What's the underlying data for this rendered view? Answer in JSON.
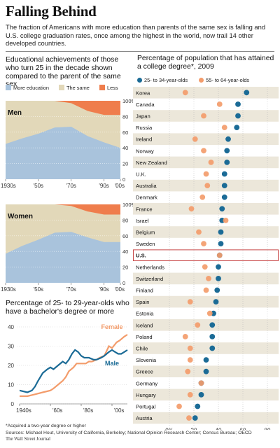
{
  "page": {
    "title": "Falling Behind",
    "intro": "The fraction of Americans with more education than parents of the same sex is falling and U.S. college graduation rates, once among the highest in the world, now trail 14 other developed countries.",
    "footnote": "*Acquired a two-year degree or higher",
    "sources": "Sources: Michael Hout, University of California, Berkeley; National Opinion Research Center; Census Bureau; OECD",
    "credit": "The Wall Street Journal"
  },
  "colors": {
    "more": "#a9c3dc",
    "same": "#e2d8b9",
    "less": "#ef7d4c",
    "dark_blue": "#1b6b96",
    "orange": "#f39c6b",
    "stripe": "#ece7da",
    "highlight": "#c94b4b"
  },
  "chart_data": [
    {
      "type": "area",
      "title": "Educational achievements of those who turn 25 in the decade shown compared to the parent of the same sex",
      "legend": [
        "More education",
        "The same",
        "Less"
      ],
      "panel_label": "Men",
      "x": [
        1930,
        1940,
        1950,
        1960,
        1970,
        1980,
        1990,
        2000
      ],
      "x_ticks": [
        "1930s",
        "'50s",
        "'70s",
        "'90s",
        "'00s"
      ],
      "y_ticks": [
        "100%",
        "80",
        "60",
        "40",
        "20",
        "0"
      ],
      "ylim": [
        0,
        100
      ],
      "series": [
        {
          "name": "More education",
          "values": [
            45,
            52,
            58,
            66,
            67,
            55,
            47,
            40
          ]
        },
        {
          "name": "The same",
          "values": [
            55,
            48,
            42,
            34,
            30,
            32,
            35,
            42
          ]
        },
        {
          "name": "Less",
          "values": [
            0,
            0,
            0,
            0,
            3,
            13,
            18,
            18
          ]
        }
      ]
    },
    {
      "type": "area",
      "panel_label": "Women",
      "x": [
        1930,
        1940,
        1950,
        1960,
        1970,
        1980,
        1990,
        2000
      ],
      "x_ticks": [
        "1930s",
        "'50s",
        "'70s",
        "'90s",
        "'00s"
      ],
      "y_ticks": [
        "100%",
        "80",
        "60",
        "40",
        "20",
        "0"
      ],
      "ylim": [
        0,
        100
      ],
      "series": [
        {
          "name": "More education",
          "values": [
            37,
            47,
            55,
            64,
            65,
            58,
            52,
            52
          ]
        },
        {
          "name": "The same",
          "values": [
            63,
            53,
            45,
            36,
            33,
            33,
            35,
            35
          ]
        },
        {
          "name": "Less",
          "values": [
            0,
            0,
            0,
            0,
            2,
            9,
            13,
            13
          ]
        }
      ]
    },
    {
      "type": "line",
      "title": "Percentage of 25- to 29-year-olds who have a bachelor's degree or more",
      "x_ticks": [
        "1940s",
        "'60s",
        "'80s",
        "'00s"
      ],
      "y_ticks": [
        "40",
        "30",
        "20",
        "10",
        "0"
      ],
      "ylim": [
        0,
        40
      ],
      "xlim": [
        1940,
        2010
      ],
      "series": [
        {
          "name": "Female",
          "points": [
            [
              1940,
              4
            ],
            [
              1945,
              4
            ],
            [
              1950,
              5
            ],
            [
              1955,
              6
            ],
            [
              1960,
              7
            ],
            [
              1962,
              8
            ],
            [
              1965,
              10
            ],
            [
              1968,
              12
            ],
            [
              1970,
              14
            ],
            [
              1972,
              17
            ],
            [
              1975,
              19
            ],
            [
              1977,
              21
            ],
            [
              1980,
              21
            ],
            [
              1983,
              21
            ],
            [
              1985,
              22
            ],
            [
              1987,
              22
            ],
            [
              1990,
              23
            ],
            [
              1992,
              24
            ],
            [
              1995,
              25
            ],
            [
              1998,
              30
            ],
            [
              2000,
              29
            ],
            [
              2003,
              32
            ],
            [
              2005,
              33
            ],
            [
              2008,
              35
            ],
            [
              2010,
              36
            ]
          ]
        },
        {
          "name": "Male",
          "points": [
            [
              1940,
              7
            ],
            [
              1945,
              6
            ],
            [
              1948,
              7
            ],
            [
              1950,
              9
            ],
            [
              1952,
              12
            ],
            [
              1955,
              16
            ],
            [
              1958,
              18
            ],
            [
              1960,
              19
            ],
            [
              1962,
              18
            ],
            [
              1965,
              20
            ],
            [
              1968,
              22
            ],
            [
              1970,
              21
            ],
            [
              1972,
              23
            ],
            [
              1974,
              26
            ],
            [
              1976,
              28
            ],
            [
              1978,
              27
            ],
            [
              1980,
              25
            ],
            [
              1982,
              24
            ],
            [
              1985,
              24
            ],
            [
              1988,
              23
            ],
            [
              1990,
              23
            ],
            [
              1993,
              24
            ],
            [
              1995,
              25
            ],
            [
              1998,
              27
            ],
            [
              2000,
              28
            ],
            [
              2002,
              27
            ],
            [
              2004,
              26
            ],
            [
              2006,
              26
            ],
            [
              2008,
              27
            ],
            [
              2010,
              28
            ]
          ]
        }
      ]
    },
    {
      "type": "scatter",
      "title": "Percentage of population that has attained a college degree*, 2009",
      "legend": [
        "25- to 34-year-olds",
        "55- to 64-year-olds"
      ],
      "x_ticks": [
        "0%",
        "20",
        "40",
        "60",
        "80"
      ],
      "xlim": [
        0,
        80
      ],
      "highlight": "U.S.",
      "countries": [
        {
          "name": "Korea",
          "young": 63,
          "old": 13
        },
        {
          "name": "Canada",
          "young": 56,
          "old": 41
        },
        {
          "name": "Japan",
          "young": 56,
          "old": 28
        },
        {
          "name": "Russia",
          "young": 55,
          "old": 45
        },
        {
          "name": "Ireland",
          "young": 48,
          "old": 21
        },
        {
          "name": "Norway",
          "young": 47,
          "old": 28
        },
        {
          "name": "New Zealand",
          "young": 47,
          "old": 34
        },
        {
          "name": "U.K.",
          "young": 45,
          "old": 30
        },
        {
          "name": "Australia",
          "young": 45,
          "old": 31
        },
        {
          "name": "Denmark",
          "young": 45,
          "old": 27
        },
        {
          "name": "France",
          "young": 43,
          "old": 18
        },
        {
          "name": "Israel",
          "young": 43,
          "old": 46
        },
        {
          "name": "Belgium",
          "young": 42,
          "old": 24
        },
        {
          "name": "Sweden",
          "young": 42,
          "old": 28
        },
        {
          "name": "U.S.",
          "young": 41,
          "old": 41
        },
        {
          "name": "Netherlands",
          "young": 40,
          "old": 29
        },
        {
          "name": "Switzerland",
          "young": 40,
          "old": 32
        },
        {
          "name": "Finland",
          "young": 39,
          "old": 30
        },
        {
          "name": "Spain",
          "young": 38,
          "old": 17
        },
        {
          "name": "Estonia",
          "young": 36,
          "old": 33
        },
        {
          "name": "Iceland",
          "young": 35,
          "old": 23
        },
        {
          "name": "Poland",
          "young": 35,
          "old": 13
        },
        {
          "name": "Chile",
          "young": 35,
          "old": 17
        },
        {
          "name": "Slovenia",
          "young": 30,
          "old": 17
        },
        {
          "name": "Greece",
          "young": 30,
          "old": 15
        },
        {
          "name": "Germany",
          "young": 26,
          "old": 26
        },
        {
          "name": "Hungary",
          "young": 26,
          "old": 17
        },
        {
          "name": "Portugal",
          "young": 23,
          "old": 8
        },
        {
          "name": "Austria",
          "young": 21,
          "old": 16
        }
      ]
    }
  ]
}
